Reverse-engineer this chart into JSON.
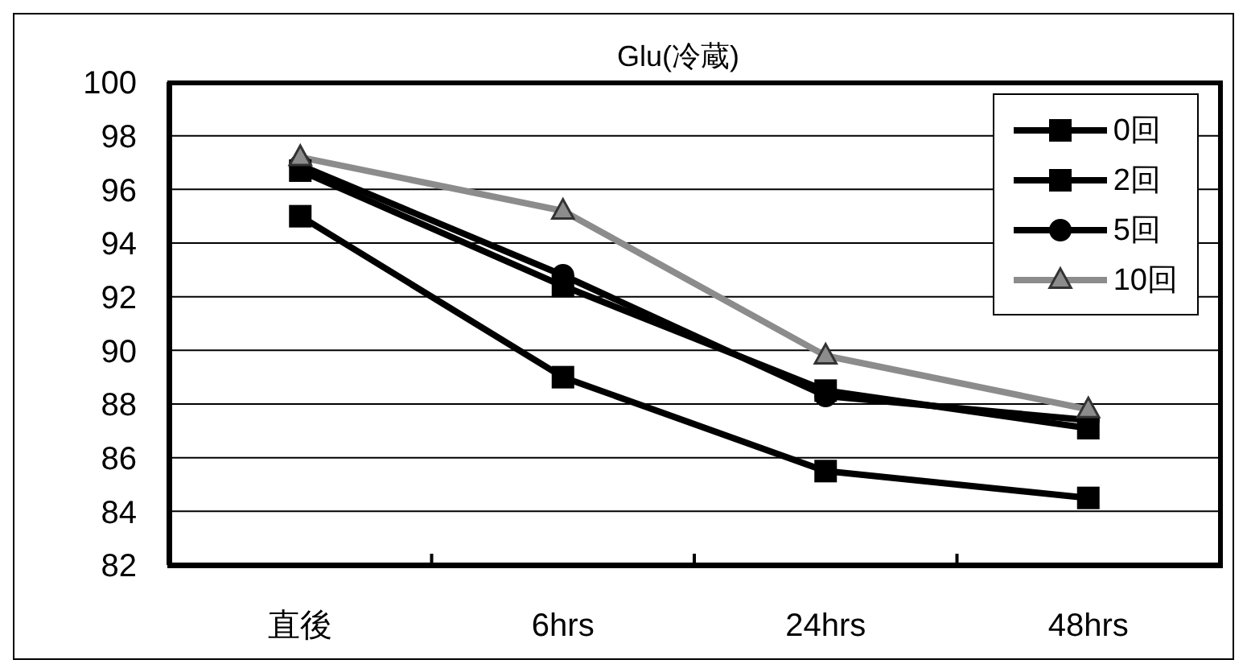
{
  "chart_data": {
    "type": "line",
    "title": "Glu(冷蔵)",
    "categories": [
      "直後",
      "6hrs",
      "24hrs",
      "48hrs"
    ],
    "series": [
      {
        "name": "0回",
        "color": "#000000",
        "marker": "square",
        "values": [
          95,
          89,
          85.5,
          84.5
        ]
      },
      {
        "name": "2回",
        "color": "#000000",
        "marker": "square",
        "values": [
          96.7,
          92.4,
          88.5,
          87.1
        ]
      },
      {
        "name": "5回",
        "color": "#000000",
        "marker": "circle",
        "values": [
          96.9,
          92.8,
          88.3,
          87.4
        ]
      },
      {
        "name": "10回",
        "color": "#8c8c8c",
        "marker": "triangle",
        "values": [
          97.2,
          95.2,
          89.8,
          87.8
        ]
      }
    ],
    "ylim": [
      82,
      100
    ],
    "yticks": [
      82,
      84,
      86,
      88,
      90,
      92,
      94,
      96,
      98,
      100
    ],
    "grid": "y",
    "legend": "top right"
  }
}
